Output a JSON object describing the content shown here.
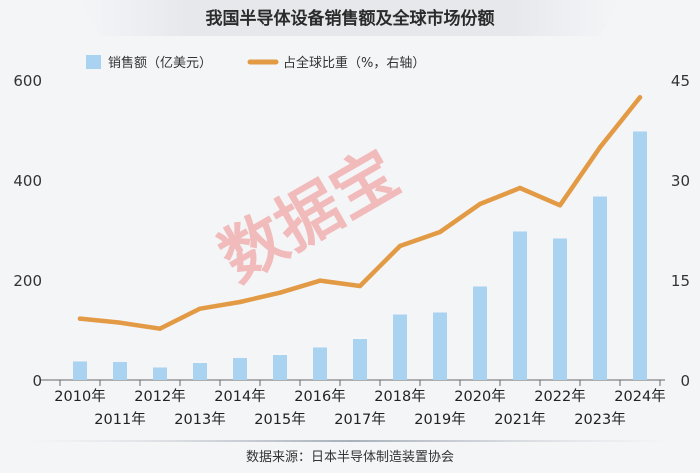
{
  "chart_data": {
    "type": "bar+line",
    "title": "我国半导体设备销售额及全球市场份额",
    "source": "数据来源：日本半导体制造装置协会",
    "watermark": "数据宝",
    "categories": [
      "2010年",
      "2011年",
      "2012年",
      "2013年",
      "2014年",
      "2015年",
      "2016年",
      "2017年",
      "2018年",
      "2019年",
      "2020年",
      "2021年",
      "2022年",
      "2023年",
      "2024年"
    ],
    "series": [
      {
        "name": "销售额（亿美元）",
        "type": "bar",
        "axis": "left",
        "color": "#a9d3f0",
        "values": [
          37,
          36,
          25,
          34,
          44,
          50,
          65,
          82,
          131,
          135,
          187,
          297,
          283,
          367,
          497
        ]
      },
      {
        "name": "占全球比重（%，右轴）",
        "type": "line",
        "axis": "right",
        "color": "#e39a45",
        "values": [
          9.2,
          8.6,
          7.7,
          10.7,
          11.7,
          13.1,
          14.9,
          14.1,
          20.1,
          22.2,
          26.4,
          28.8,
          26.2,
          34.9,
          42.4
        ]
      }
    ],
    "y_left": {
      "min": 0,
      "max": 600,
      "ticks": [
        0,
        200,
        400,
        600
      ]
    },
    "y_right": {
      "min": 0,
      "max": 45,
      "ticks": [
        0,
        15,
        30,
        45
      ]
    },
    "legend_position": "top",
    "grid": false
  }
}
